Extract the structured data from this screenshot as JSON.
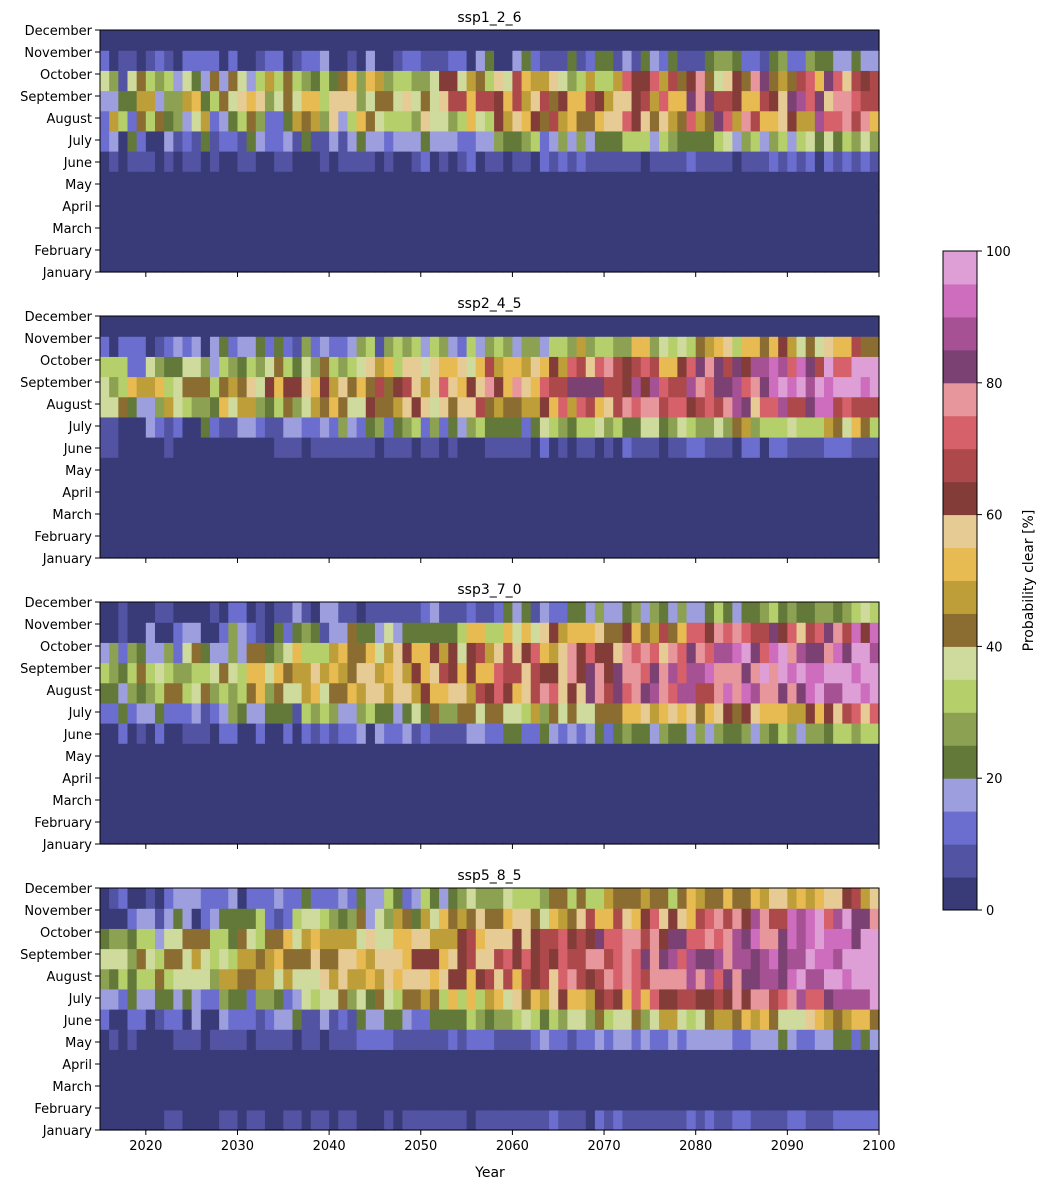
{
  "chart_data": {
    "type": "heatmap",
    "xlabel": "Year",
    "xlim": [
      2015,
      2100
    ],
    "x_ticks": [
      2020,
      2030,
      2040,
      2050,
      2060,
      2070,
      2080,
      2090,
      2100
    ],
    "x_tick_labels": [
      "2020",
      "2030",
      "2040",
      "2050",
      "2060",
      "2070",
      "2080",
      "2090",
      "2100"
    ],
    "y_categories": [
      "January",
      "February",
      "March",
      "April",
      "May",
      "June",
      "July",
      "August",
      "September",
      "October",
      "November",
      "December"
    ],
    "colorbar": {
      "label": "Probability clear [%]",
      "range": [
        0,
        100
      ],
      "ticks": [
        0,
        20,
        40,
        60,
        80,
        100
      ],
      "tick_labels": [
        "0",
        "20",
        "40",
        "60",
        "80",
        "100"
      ],
      "levels": 20,
      "colors": [
        "#393b79",
        "#5254a3",
        "#6b6ecf",
        "#9c9ede",
        "#637939",
        "#8ca252",
        "#b5cf6b",
        "#cedb9c",
        "#8c6d31",
        "#bd9e39",
        "#e7ba52",
        "#e7cb94",
        "#843c39",
        "#ad494a",
        "#d6616b",
        "#e7969c",
        "#7b4173",
        "#a55194",
        "#ce6dbd",
        "#de9ed6"
      ]
    },
    "panels": [
      {
        "title": "ssp1_2_6",
        "months": {
          "January": {
            "start": 3,
            "end": 3,
            "noise": 0
          },
          "February": {
            "start": 3,
            "end": 3,
            "noise": 0
          },
          "March": {
            "start": 3,
            "end": 3,
            "noise": 0
          },
          "April": {
            "start": 3,
            "end": 3,
            "noise": 0
          },
          "May": {
            "start": 3,
            "end": 3,
            "noise": 0
          },
          "June": {
            "start": 3,
            "end": 10,
            "noise": 5
          },
          "July": {
            "start": 10,
            "end": 30,
            "noise": 10
          },
          "August": {
            "start": 25,
            "end": 72,
            "noise": 20
          },
          "September": {
            "start": 32,
            "end": 78,
            "noise": 18
          },
          "October": {
            "start": 22,
            "end": 68,
            "noise": 22
          },
          "November": {
            "start": 3,
            "end": 22,
            "noise": 10
          },
          "December": {
            "start": 3,
            "end": 3,
            "noise": 0
          }
        }
      },
      {
        "title": "ssp2_4_5",
        "months": {
          "January": {
            "start": 3,
            "end": 3,
            "noise": 0
          },
          "February": {
            "start": 3,
            "end": 3,
            "noise": 0
          },
          "March": {
            "start": 3,
            "end": 3,
            "noise": 0
          },
          "April": {
            "start": 3,
            "end": 3,
            "noise": 0
          },
          "May": {
            "start": 3,
            "end": 3,
            "noise": 0
          },
          "June": {
            "start": 3,
            "end": 10,
            "noise": 5
          },
          "July": {
            "start": 8,
            "end": 42,
            "noise": 12
          },
          "August": {
            "start": 30,
            "end": 85,
            "noise": 18
          },
          "September": {
            "start": 38,
            "end": 92,
            "noise": 14
          },
          "October": {
            "start": 22,
            "end": 88,
            "noise": 16
          },
          "November": {
            "start": 3,
            "end": 55,
            "noise": 14
          },
          "December": {
            "start": 3,
            "end": 3,
            "noise": 0
          }
        }
      },
      {
        "title": "ssp3_7_0",
        "months": {
          "January": {
            "start": 3,
            "end": 3,
            "noise": 0
          },
          "February": {
            "start": 3,
            "end": 3,
            "noise": 0
          },
          "March": {
            "start": 3,
            "end": 3,
            "noise": 0
          },
          "April": {
            "start": 3,
            "end": 3,
            "noise": 0
          },
          "May": {
            "start": 3,
            "end": 3,
            "noise": 0
          },
          "June": {
            "start": 3,
            "end": 28,
            "noise": 8
          },
          "July": {
            "start": 8,
            "end": 65,
            "noise": 12
          },
          "August": {
            "start": 28,
            "end": 95,
            "noise": 12
          },
          "September": {
            "start": 30,
            "end": 98,
            "noise": 10
          },
          "October": {
            "start": 20,
            "end": 95,
            "noise": 14
          },
          "November": {
            "start": 3,
            "end": 80,
            "noise": 16
          },
          "December": {
            "start": 3,
            "end": 28,
            "noise": 8
          }
        }
      },
      {
        "title": "ssp5_8_5",
        "months": {
          "January": {
            "start": 3,
            "end": 12,
            "noise": 4
          },
          "February": {
            "start": 3,
            "end": 3,
            "noise": 0
          },
          "March": {
            "start": 3,
            "end": 3,
            "noise": 0
          },
          "April": {
            "start": 3,
            "end": 3,
            "noise": 0
          },
          "May": {
            "start": 3,
            "end": 18,
            "noise": 5
          },
          "June": {
            "start": 3,
            "end": 52,
            "noise": 10
          },
          "July": {
            "start": 8,
            "end": 88,
            "noise": 12
          },
          "August": {
            "start": 30,
            "end": 98,
            "noise": 10
          },
          "September": {
            "start": 32,
            "end": 99,
            "noise": 8
          },
          "October": {
            "start": 24,
            "end": 98,
            "noise": 12
          },
          "November": {
            "start": 5,
            "end": 88,
            "noise": 14
          },
          "December": {
            "start": 3,
            "end": 60,
            "noise": 10
          }
        }
      }
    ]
  }
}
